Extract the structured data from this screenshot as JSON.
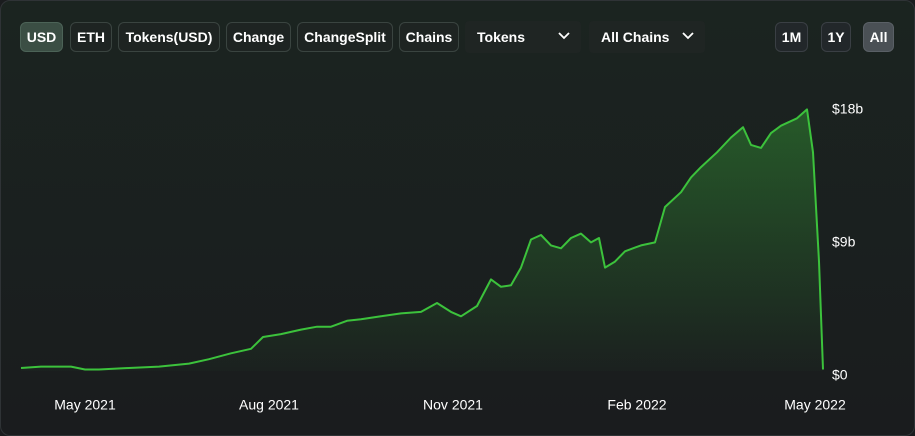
{
  "toolbar": {
    "buttons": [
      {
        "label": "USD",
        "active": true
      },
      {
        "label": "ETH",
        "active": false
      },
      {
        "label": "Tokens(USD)",
        "active": false
      },
      {
        "label": "Change",
        "active": false
      },
      {
        "label": "ChangeSplit",
        "active": false
      },
      {
        "label": "Chains",
        "active": false
      }
    ],
    "dropdowns": [
      "Tokens",
      "All Chains"
    ],
    "ranges": [
      {
        "label": "1M",
        "active": false
      },
      {
        "label": "1Y",
        "active": false
      },
      {
        "label": "All",
        "active": true
      }
    ]
  },
  "chart_data": {
    "type": "area",
    "color": "#3cc23c",
    "x": [
      "2021-03-30",
      "2021-04-09",
      "2021-04-24",
      "2021-05-01",
      "2021-05-08",
      "2021-05-23",
      "2021-06-07",
      "2021-06-22",
      "2021-07-02",
      "2021-07-13",
      "2021-07-23",
      "2021-07-29",
      "2021-08-07",
      "2021-08-17",
      "2021-08-25",
      "2021-09-01",
      "2021-09-09",
      "2021-09-16",
      "2021-09-26",
      "2021-10-06",
      "2021-10-16",
      "2021-10-24",
      "2021-10-31",
      "2021-11-05",
      "2021-11-13",
      "2021-11-20",
      "2021-11-25",
      "2021-11-30",
      "2021-12-05",
      "2021-12-10",
      "2021-12-15",
      "2021-12-20",
      "2021-12-25",
      "2021-12-30",
      "2022-01-04",
      "2022-01-09",
      "2022-01-13",
      "2022-01-16",
      "2022-01-21",
      "2022-01-26",
      "2022-02-03",
      "2022-02-10",
      "2022-02-15",
      "2022-02-23",
      "2022-02-28",
      "2022-03-05",
      "2022-03-13",
      "2022-03-20",
      "2022-03-26",
      "2022-03-30",
      "2022-04-04",
      "2022-04-09",
      "2022-04-14",
      "2022-04-22",
      "2022-04-27",
      "2022-04-30",
      "2022-05-03",
      "2022-05-05"
    ],
    "values": [
      0.2,
      0.3,
      0.3,
      0.1,
      0.1,
      0.2,
      0.3,
      0.5,
      0.8,
      1.2,
      1.5,
      2.3,
      2.5,
      2.8,
      3.0,
      3.0,
      3.4,
      3.5,
      3.7,
      3.9,
      4.0,
      4.6,
      4.0,
      3.7,
      4.4,
      6.2,
      5.7,
      5.8,
      7.0,
      8.9,
      9.2,
      8.5,
      8.3,
      9.0,
      9.3,
      8.7,
      9.0,
      7.0,
      7.4,
      8.1,
      8.5,
      8.7,
      11.1,
      12.1,
      13.1,
      13.8,
      14.8,
      15.8,
      16.5,
      15.3,
      15.1,
      16.1,
      16.6,
      17.1,
      17.7,
      14.8,
      7.4,
      0.1
    ],
    "xlim": [
      "2021-03-30",
      "2022-05-05"
    ],
    "xticks": [
      {
        "value": "2021-05-01",
        "label": "May 2021"
      },
      {
        "value": "2021-08-01",
        "label": "Aug 2021"
      },
      {
        "value": "2021-11-01",
        "label": "Nov 2021"
      },
      {
        "value": "2022-02-01",
        "label": "Feb 2022"
      },
      {
        "value": "2022-05-01",
        "label": "May 2022"
      }
    ],
    "ylim": [
      0,
      18
    ],
    "yticks": [
      {
        "value": 0,
        "label": "$0"
      },
      {
        "value": 9,
        "label": "$9b"
      },
      {
        "value": 18,
        "label": "$18b"
      }
    ]
  }
}
